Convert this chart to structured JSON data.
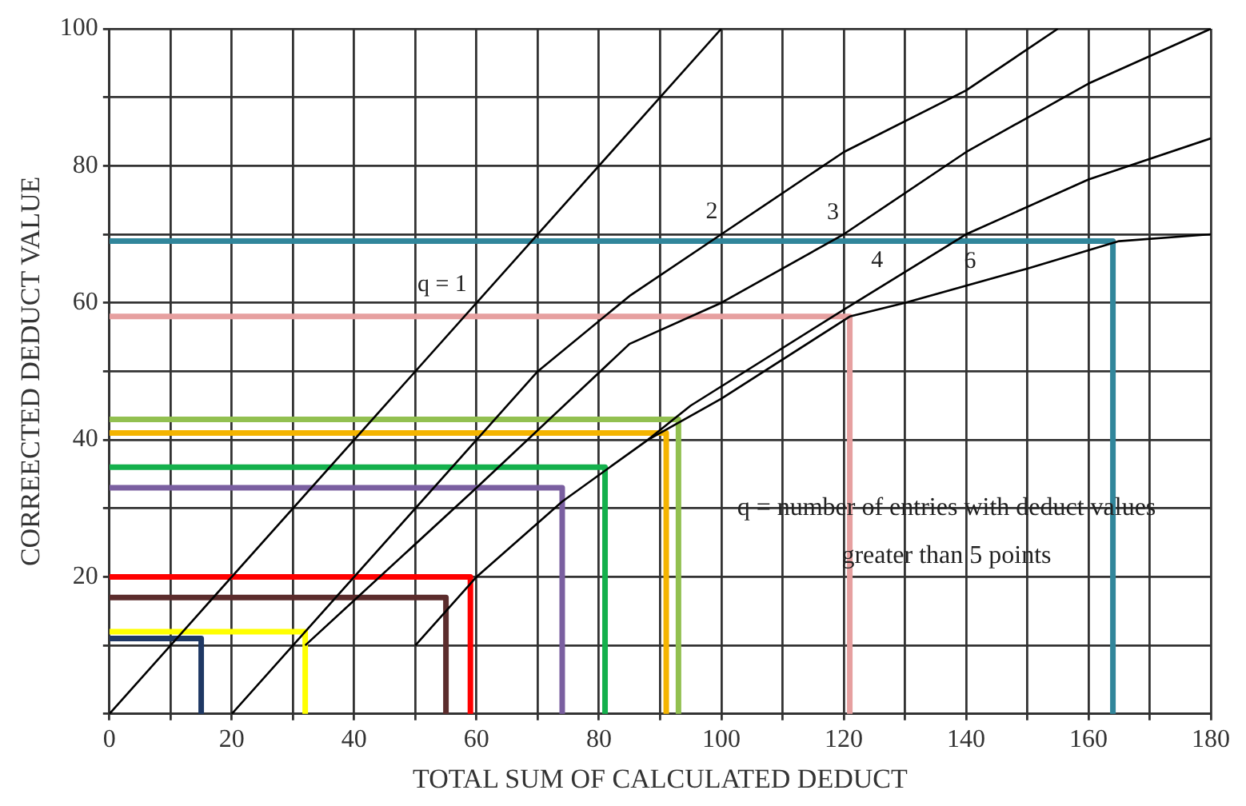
{
  "chart_data": {
    "type": "line",
    "xlabel": "TOTAL SUM OF CALCULATED DEDUCT",
    "ylabel": "CORREECTED DEDUCT VALUE",
    "xlim": [
      0,
      180
    ],
    "ylim": [
      0,
      100
    ],
    "xticks": [
      0,
      {
        "value": 10,
        "label": null
      },
      20,
      {
        "value": 30,
        "label": null
      },
      40,
      {
        "value": 50,
        "label": null
      },
      60,
      {
        "value": 70,
        "label": null
      },
      80,
      {
        "value": 90,
        "label": null
      },
      100,
      {
        "value": 110,
        "label": null
      },
      120,
      {
        "value": 130,
        "label": null
      },
      140,
      {
        "value": 150,
        "label": null
      },
      160,
      {
        "value": 170,
        "label": null
      },
      180
    ],
    "yticks": [
      {
        "value": 0,
        "label": null
      },
      {
        "value": 10,
        "label": null
      },
      20,
      {
        "value": 30,
        "label": null
      },
      40,
      {
        "value": 50,
        "label": null
      },
      60,
      {
        "value": 70,
        "label": null
      },
      80,
      {
        "value": 90,
        "label": null
      },
      100
    ],
    "grid": true,
    "legend": false,
    "marker": "none",
    "line_style": "solid",
    "annotations": [
      "q = number of entries with deduct values greater than 5 points"
    ],
    "series": [
      {
        "name": "q = 1",
        "color": "#000000",
        "x": [
          0,
          100
        ],
        "values": [
          0,
          100
        ]
      },
      {
        "name": "2",
        "color": "#000000",
        "x": [
          20,
          70,
          85,
          100,
          120,
          140,
          155
        ],
        "values": [
          0,
          50,
          61,
          70,
          82,
          91,
          100
        ]
      },
      {
        "name": "3",
        "color": "#000000",
        "x": [
          32,
          60,
          85,
          100,
          120,
          140,
          160,
          180
        ],
        "values": [
          10,
          33,
          54,
          60,
          70,
          82,
          92,
          100
        ]
      },
      {
        "name": "4",
        "color": "#000000",
        "x": [
          50,
          60,
          74,
          88,
          95,
          120,
          140,
          160,
          180
        ],
        "values": [
          10,
          20,
          31,
          40,
          45,
          59,
          70,
          78,
          84
        ]
      },
      {
        "name": "6",
        "color": "#000000",
        "x": [
          88,
          100,
          121,
          130,
          150,
          165,
          180
        ],
        "values": [
          40,
          46,
          58,
          60,
          65,
          69,
          70
        ]
      },
      {
        "color": "#1f3864",
        "x": [
          0,
          15,
          15
        ],
        "values": [
          11,
          11,
          0
        ]
      },
      {
        "color": "#ffff00",
        "x": [
          0,
          32,
          32
        ],
        "values": [
          12,
          12,
          0
        ]
      },
      {
        "color": "#5b2c2c",
        "x": [
          0,
          55,
          55
        ],
        "values": [
          17,
          17,
          0
        ]
      },
      {
        "color": "#ff0000",
        "x": [
          0,
          59,
          59
        ],
        "values": [
          20,
          20,
          0
        ]
      },
      {
        "color": "#7a5fa0",
        "x": [
          0,
          74,
          74
        ],
        "values": [
          33,
          33,
          0
        ]
      },
      {
        "color": "#14b04c",
        "x": [
          0,
          81,
          81
        ],
        "values": [
          36,
          36,
          0
        ]
      },
      {
        "color": "#f4b400",
        "x": [
          0,
          91,
          91
        ],
        "values": [
          41,
          41,
          0
        ]
      },
      {
        "color": "#92c050",
        "x": [
          0,
          93,
          93
        ],
        "values": [
          43,
          43,
          0
        ]
      },
      {
        "color": "#e6a0a0",
        "x": [
          0,
          121,
          121
        ],
        "values": [
          58,
          58,
          0
        ]
      },
      {
        "color": "#31869b",
        "x": [
          0,
          164,
          164
        ],
        "values": [
          69,
          69,
          0
        ]
      }
    ]
  }
}
